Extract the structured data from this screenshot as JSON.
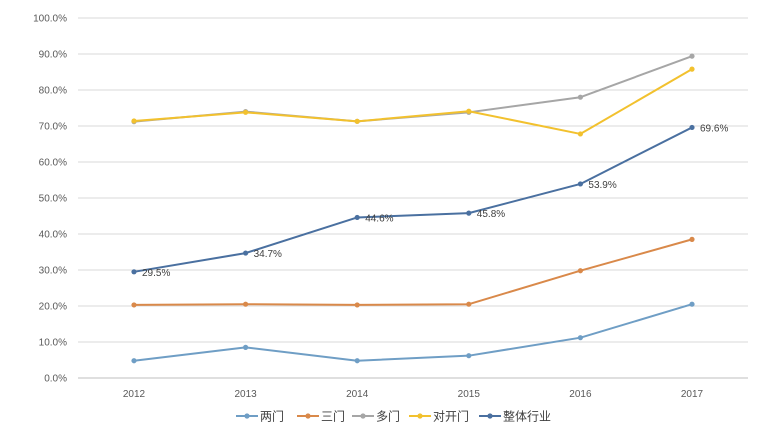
{
  "chart_data": {
    "type": "line",
    "title": "",
    "xlabel": "",
    "ylabel": "",
    "x": [
      "2012",
      "2013",
      "2014",
      "2015",
      "2016",
      "2017"
    ],
    "ylim": [
      0,
      100
    ],
    "yticks": [
      "0.0%",
      "10.0%",
      "20.0%",
      "30.0%",
      "40.0%",
      "50.0%",
      "60.0%",
      "70.0%",
      "80.0%",
      "90.0%",
      "100.0%"
    ],
    "grid": true,
    "legend_position": "bottom",
    "series": [
      {
        "key": "two-door",
        "name": "两门",
        "color": "#6f9ec5",
        "values": [
          4.8,
          8.5,
          4.8,
          6.2,
          11.2,
          20.5
        ],
        "labels": []
      },
      {
        "key": "three-door",
        "name": "三门",
        "color": "#d9894a",
        "values": [
          20.3,
          20.5,
          20.3,
          20.5,
          29.8,
          38.5
        ],
        "labels": []
      },
      {
        "key": "multi-door",
        "name": "多门",
        "color": "#a6a6a6",
        "values": [
          71.2,
          74.0,
          71.3,
          73.8,
          78.0,
          89.4
        ],
        "labels": []
      },
      {
        "key": "french-door",
        "name": "对开门",
        "color": "#f2c12e",
        "values": [
          71.4,
          73.8,
          71.3,
          74.1,
          67.8,
          85.8
        ],
        "labels": []
      },
      {
        "key": "industry-total",
        "name": "整体行业",
        "color": "#4a70a0",
        "values": [
          29.5,
          34.7,
          44.6,
          45.8,
          53.9,
          69.6
        ],
        "labels": [
          "29.5%",
          "34.7%",
          "44.6%",
          "45.8%",
          "53.9%",
          "69.6%"
        ]
      }
    ]
  }
}
